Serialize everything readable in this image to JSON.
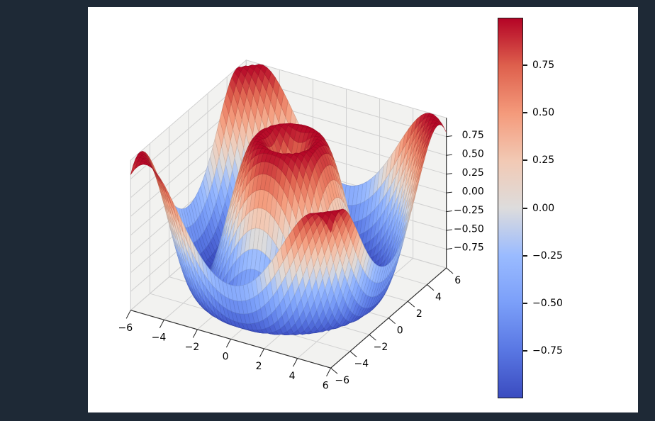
{
  "window": {
    "background": "#1e2936",
    "figure_background": "#ffffff"
  },
  "chart_data": {
    "type": "surface",
    "title": "",
    "z_function": "sin(sqrt(x^2 + y^2))",
    "x_range": [
      -6,
      6
    ],
    "y_range": [
      -6,
      6
    ],
    "z_range": [
      -1,
      1
    ],
    "grid_points": 49,
    "view": {
      "elev": 30,
      "azim": -60,
      "projection": "orthographic"
    },
    "colormap": {
      "name": "coolwarm",
      "stops": [
        [
          0.0,
          "#3b4cc0"
        ],
        [
          0.125,
          "#5977e3"
        ],
        [
          0.25,
          "#7b9ff9"
        ],
        [
          0.375,
          "#9abbff"
        ],
        [
          0.5,
          "#dddcdc"
        ],
        [
          0.625,
          "#f2c9b4"
        ],
        [
          0.75,
          "#f49a7b"
        ],
        [
          0.875,
          "#de604d"
        ],
        [
          1.0,
          "#b40426"
        ]
      ]
    },
    "axes": {
      "x_ticks": [
        {
          "v": -6,
          "label": "−6"
        },
        {
          "v": -4,
          "label": "−4"
        },
        {
          "v": -2,
          "label": "−2"
        },
        {
          "v": 0,
          "label": "0"
        },
        {
          "v": 2,
          "label": "2"
        },
        {
          "v": 4,
          "label": "4"
        },
        {
          "v": 6,
          "label": "6"
        }
      ],
      "y_ticks": [
        {
          "v": -6,
          "label": "−6"
        },
        {
          "v": -4,
          "label": "−4"
        },
        {
          "v": -2,
          "label": "−2"
        },
        {
          "v": 0,
          "label": "0"
        },
        {
          "v": 2,
          "label": "2"
        },
        {
          "v": 4,
          "label": "4"
        },
        {
          "v": 6,
          "label": "6"
        }
      ],
      "z_ticks": [
        {
          "v": 0.75,
          "label": "0.75"
        },
        {
          "v": 0.5,
          "label": "0.50"
        },
        {
          "v": 0.25,
          "label": "0.25"
        },
        {
          "v": 0,
          "label": "0.00"
        },
        {
          "v": -0.25,
          "label": "−0.25"
        },
        {
          "v": -0.5,
          "label": "−0.50"
        },
        {
          "v": -0.75,
          "label": "−0.75"
        }
      ],
      "pane_color": "#f2f2f0",
      "grid_color": "#d0d0d0",
      "axis_line_color": "#2f2f2f",
      "tick_mark_color": "#222222",
      "tick_label_color": "#000000",
      "tick_font_px": 14
    },
    "colorbar": {
      "min": -1,
      "max": 1,
      "outline_color": "#1a1a1a",
      "ticks": [
        {
          "v": 0.75,
          "label": "0.75"
        },
        {
          "v": 0.5,
          "label": "0.50"
        },
        {
          "v": 0.25,
          "label": "0.25"
        },
        {
          "v": 0,
          "label": "0.00"
        },
        {
          "v": -0.25,
          "label": "−0.25"
        },
        {
          "v": -0.5,
          "label": "−0.50"
        },
        {
          "v": -0.75,
          "label": "−0.75"
        }
      ]
    }
  }
}
